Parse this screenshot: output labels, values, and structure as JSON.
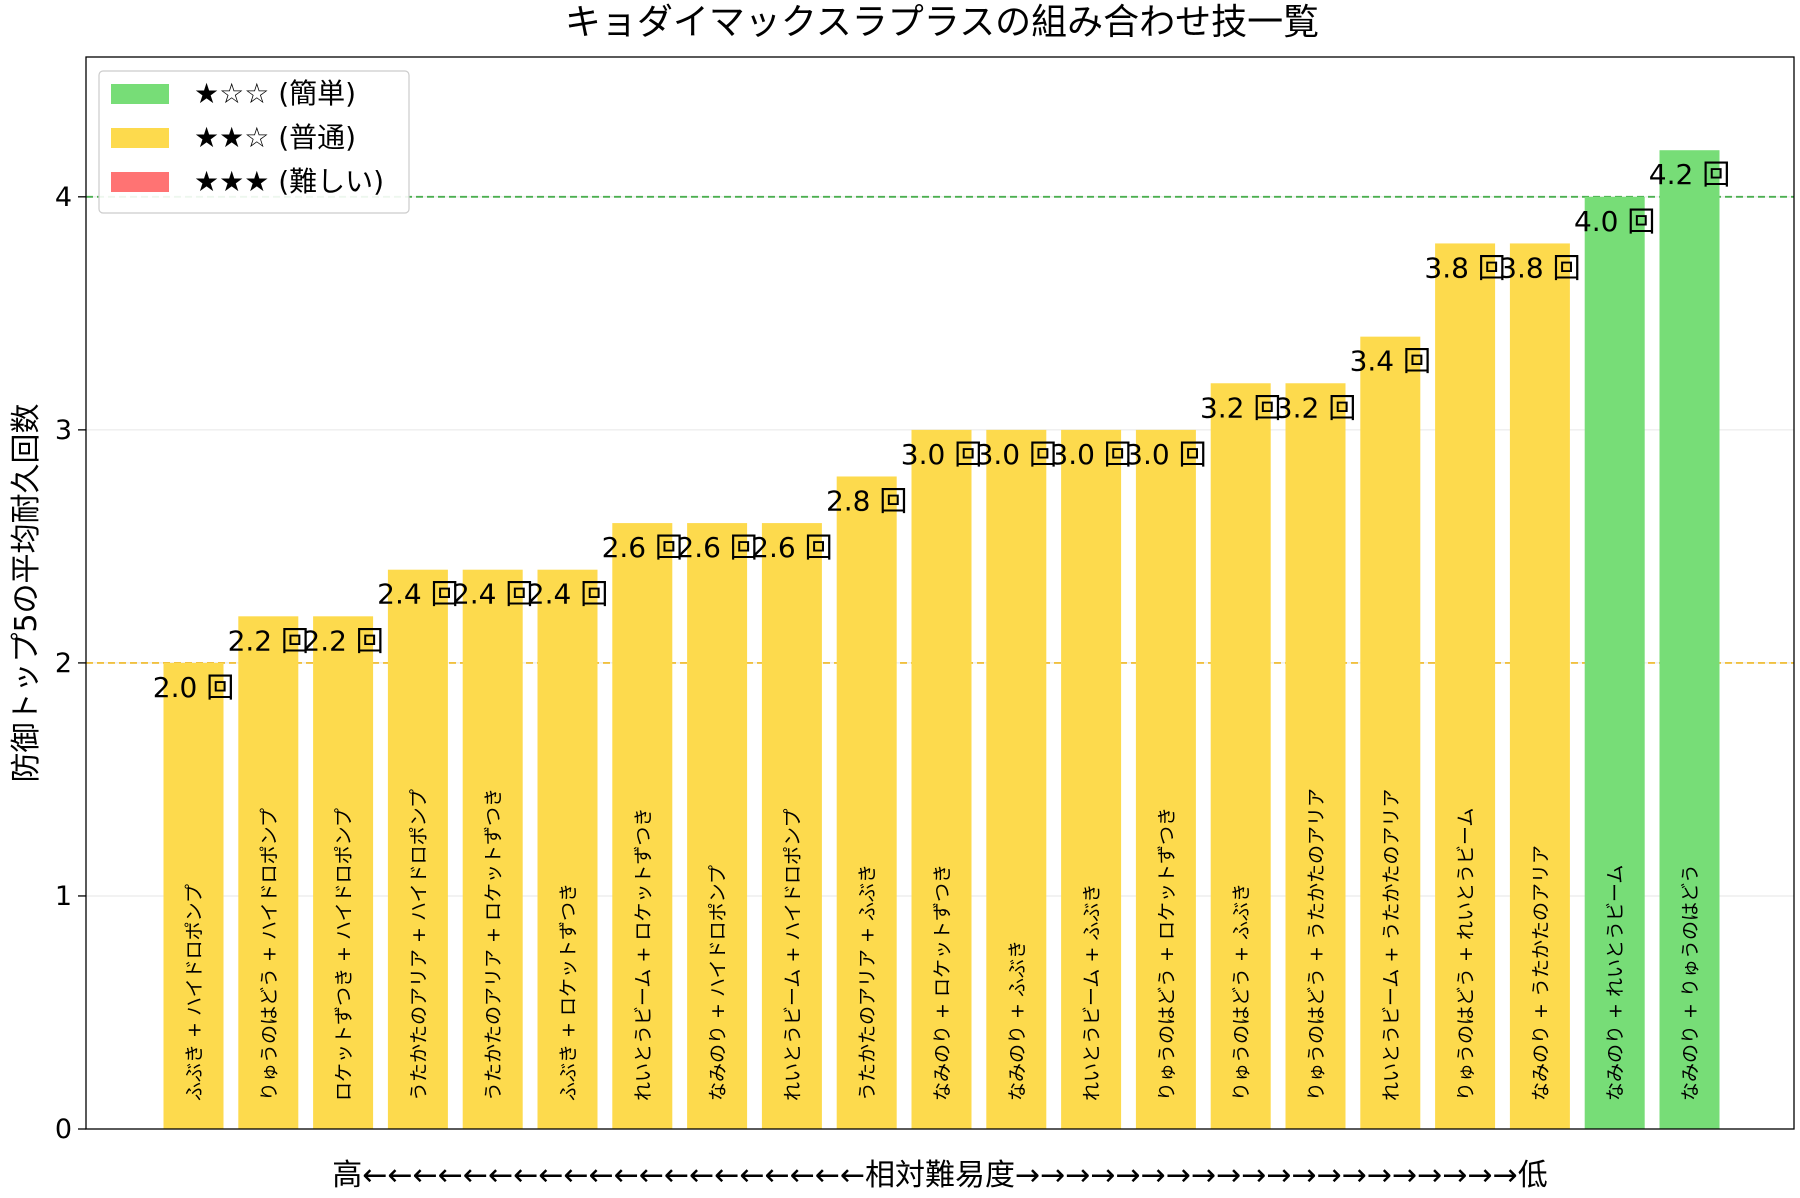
{
  "chart_data": {
    "type": "bar",
    "title": "キョダイマックスラプラスの組み合わせ技一覧",
    "ylabel": "防御トップ5の平均耐久回数",
    "xlabel": "高←←←←←←←←←←←←←←←←←←←←相対難易度→→→→→→→→→→→→→→→→→→→→低",
    "ylim": [
      0,
      4.6
    ],
    "yticks": [
      "0",
      "1",
      "2",
      "3",
      "4"
    ],
    "value_suffix": " 回",
    "grid": "horizontal",
    "legend_position": "top-left",
    "legend": [
      {
        "label": "★☆☆ (簡単)",
        "color": "#77dd77"
      },
      {
        "label": "★★☆ (普通)",
        "color": "#fdda4d"
      },
      {
        "label": "★★★ (難しい)",
        "color": "#ff7373"
      }
    ],
    "reference_lines": [
      {
        "value": 4,
        "color": "#4caf50"
      },
      {
        "value": 2,
        "color": "#f0c040"
      }
    ],
    "categories": [
      "ふぶき + ハイドロポンプ",
      "りゅうのはどう + ハイドロポンプ",
      "ロケットずつき + ハイドロポンプ",
      "うたかたのアリア + ハイドロポンプ",
      "うたかたのアリア + ロケットずつき",
      "ふぶき + ロケットずつき",
      "れいとうビーム + ロケットずつき",
      "なみのり + ハイドロポンプ",
      "れいとうビーム + ハイドロポンプ",
      "うたかたのアリア + ふぶき",
      "なみのり + ロケットずつき",
      "なみのり + ふぶき",
      "れいとうビーム + ふぶき",
      "りゅうのはどう + ロケットずつき",
      "りゅうのはどう + ふぶき",
      "りゅうのはどう + うたかたのアリア",
      "れいとうビーム + うたかたのアリア",
      "りゅうのはどう + れいとうビーム",
      "なみのり + うたかたのアリア",
      "なみのり + れいとうビーム",
      "なみのり + りゅうのはどう"
    ],
    "values": [
      2.0,
      2.2,
      2.2,
      2.4,
      2.4,
      2.4,
      2.6,
      2.6,
      2.6,
      2.8,
      3.0,
      3.0,
      3.0,
      3.0,
      3.2,
      3.2,
      3.4,
      3.8,
      3.8,
      4.0,
      4.2
    ],
    "value_labels": [
      "2.0 回",
      "2.2 回",
      "2.2 回",
      "2.4 回",
      "2.4 回",
      "2.4 回",
      "2.6 回",
      "2.6 回",
      "2.6 回",
      "2.8 回",
      "3.0 回",
      "3.0 回",
      "3.0 回",
      "3.0 回",
      "3.2 回",
      "3.2 回",
      "3.4 回",
      "3.8 回",
      "3.8 回",
      "4.0 回",
      "4.2 回"
    ],
    "difficulty": [
      "normal",
      "normal",
      "normal",
      "normal",
      "normal",
      "normal",
      "normal",
      "normal",
      "normal",
      "normal",
      "normal",
      "normal",
      "normal",
      "normal",
      "normal",
      "normal",
      "normal",
      "normal",
      "normal",
      "easy",
      "easy"
    ],
    "colors": {
      "easy": "#77dd77",
      "normal": "#fdda4d",
      "hard": "#ff7373"
    }
  }
}
